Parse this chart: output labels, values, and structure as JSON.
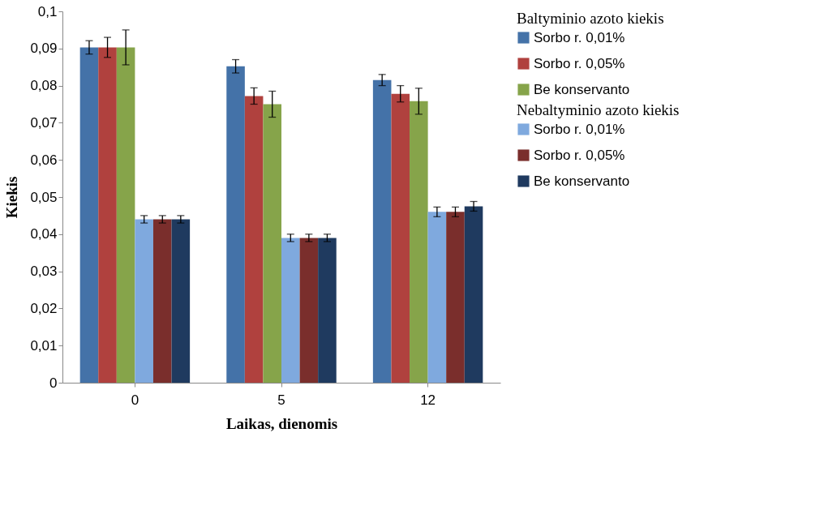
{
  "chart_data": {
    "type": "bar",
    "xlabel": "Laikas, dienomis",
    "ylabel": "Kiekis",
    "legend_title": [
      "Baltyminio azoto kiekis",
      "Nebaltyminio azoto kiekis"
    ],
    "categories": [
      "0",
      "5",
      "12"
    ],
    "series": [
      {
        "name": "Sorbo r. 0,01%",
        "color": "#4472a8",
        "values": [
          0.0903,
          0.0852,
          0.0815
        ],
        "errors": [
          0.0018,
          0.0018,
          0.0015
        ]
      },
      {
        "name": "Sorbo r. 0,05%",
        "color": "#b0413e",
        "values": [
          0.0903,
          0.0772,
          0.0778
        ],
        "errors": [
          0.0027,
          0.0022,
          0.0022
        ]
      },
      {
        "name": "Be konservanto",
        "color": "#86a44a",
        "values": [
          0.0903,
          0.075,
          0.0758
        ],
        "errors": [
          0.0047,
          0.0035,
          0.0035
        ]
      },
      {
        "name": "Sorbo r. 0,01%",
        "color": "#7fa9de",
        "values": [
          0.044,
          0.039,
          0.046
        ],
        "errors": [
          0.001,
          0.001,
          0.0013
        ]
      },
      {
        "name": "Sorbo r. 0,05%",
        "color": "#7a2e2c",
        "values": [
          0.044,
          0.039,
          0.046
        ],
        "errors": [
          0.001,
          0.001,
          0.0013
        ]
      },
      {
        "name": "Be konservanto",
        "color": "#1f3a5f",
        "values": [
          0.044,
          0.039,
          0.0475
        ],
        "errors": [
          0.001,
          0.001,
          0.0013
        ]
      }
    ],
    "ylim": [
      0,
      0.1
    ],
    "yticks": [
      0,
      {
        "value": 0.01,
        "label": "0,01"
      },
      {
        "value": 0.02,
        "label": "0,02"
      },
      {
        "value": 0.03,
        "label": "0,03"
      },
      {
        "value": 0.04,
        "label": "0,04"
      },
      {
        "value": 0.05,
        "label": "0,05"
      },
      {
        "value": 0.06,
        "label": "0,06"
      },
      {
        "value": 0.07,
        "label": "0,07"
      },
      {
        "value": 0.08,
        "label": "0,08"
      },
      {
        "value": 0.09,
        "label": "0,09"
      },
      {
        "value": 0.1,
        "label": "0,1"
      }
    ],
    "grid": false,
    "legend": "right"
  }
}
